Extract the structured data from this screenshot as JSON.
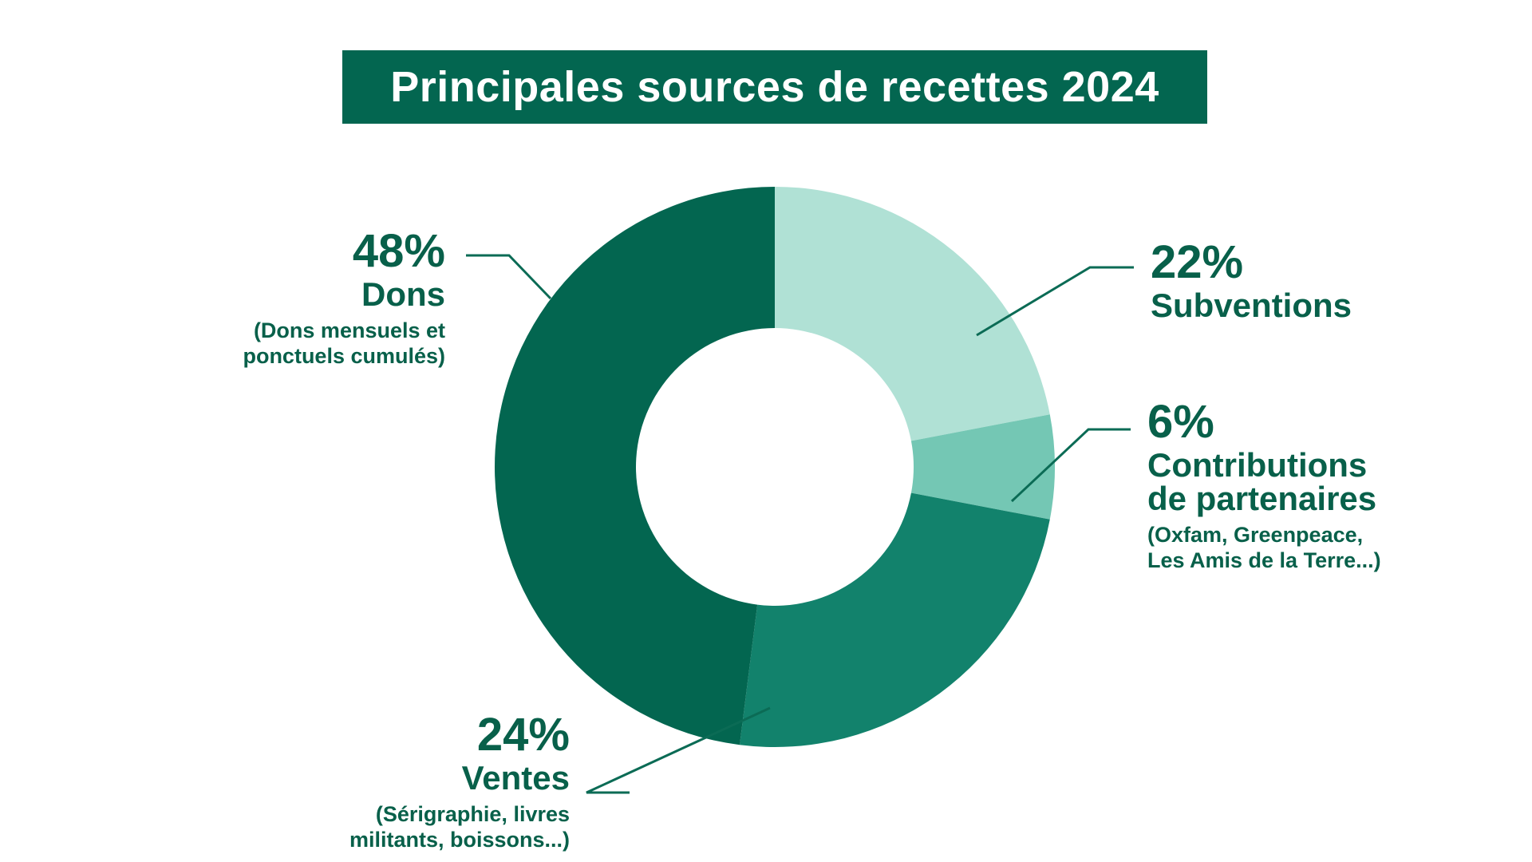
{
  "title": "Principales sources de recettes 2024",
  "colors": {
    "title_bg": "#036650",
    "text": "#08604a",
    "leader": "#0b6b55"
  },
  "chart_data": {
    "type": "pie",
    "variant": "donut",
    "title": "Principales sources de recettes 2024",
    "unit": "%",
    "series": [
      {
        "name": "Subventions",
        "value": 22,
        "label": "22%",
        "color": "#b0e1d5",
        "note": ""
      },
      {
        "name": "Contributions de partenaires",
        "value": 6,
        "label": "6%",
        "color": "#74c7b4",
        "note_lines": [
          "(Oxfam, Greenpeace,",
          "Les Amis de la Terre...)"
        ]
      },
      {
        "name": "Ventes",
        "value": 24,
        "label": "24%",
        "color": "#12826c",
        "note_lines": [
          "(Sérigraphie, livres",
          "militants, boissons...)"
        ]
      },
      {
        "name": "Dons",
        "value": 48,
        "label": "48%",
        "color": "#036650",
        "note_lines": [
          "(Dons mensuels et",
          "ponctuels cumulés)"
        ]
      }
    ]
  },
  "labels": {
    "dons": {
      "pct": "48%",
      "name": "Dons",
      "note1": "(Dons mensuels et",
      "note2": "ponctuels cumulés)"
    },
    "subventions": {
      "pct": "22%",
      "name": "Subventions"
    },
    "contributions": {
      "pct": "6%",
      "name1": "Contributions",
      "name2": "de partenaires",
      "note1": "(Oxfam, Greenpeace,",
      "note2": "Les Amis de la Terre...)"
    },
    "ventes": {
      "pct": "24%",
      "name": "Ventes",
      "note1": "(Sérigraphie, livres",
      "note2": "militants, boissons...)"
    }
  }
}
